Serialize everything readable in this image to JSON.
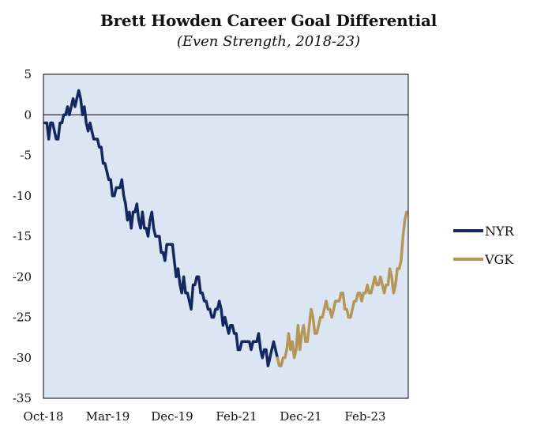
{
  "chart_data": {
    "type": "line",
    "title": "Brett Howden Career Goal Differential",
    "subtitle": "(Even Strength, 2018-23)",
    "xlabel": "",
    "ylabel": "",
    "ylim": [
      -35,
      5
    ],
    "yticks": [
      "5",
      "0",
      "-5",
      "-10",
      "-15",
      "-20",
      "-25",
      "-30",
      "-35"
    ],
    "xticks": [
      "Oct-18",
      "Mar-19",
      "Dec-19",
      "Feb-21",
      "Dec-21",
      "Feb-23"
    ],
    "grid": false,
    "legend_position": "right",
    "series": [
      {
        "name": "NYR",
        "color": "#14275e",
        "values": [
          -1,
          -1,
          -3,
          -1,
          -1,
          -2,
          -3,
          -3,
          -1,
          -1,
          0,
          0,
          1,
          0,
          1,
          2,
          1,
          2,
          3,
          2,
          0,
          1,
          -1,
          -2,
          -1,
          -2,
          -3,
          -3,
          -3,
          -4,
          -4,
          -6,
          -6,
          -7,
          -8,
          -8,
          -10,
          -10,
          -9,
          -9,
          -9,
          -8,
          -10,
          -11,
          -13,
          -12,
          -14,
          -12,
          -12,
          -11,
          -13,
          -14,
          -12,
          -14,
          -14,
          -15,
          -13,
          -12,
          -14,
          -15,
          -15,
          -15,
          -17,
          -17,
          -18,
          -16,
          -16,
          -16,
          -16,
          -18,
          -20,
          -19,
          -21,
          -22,
          -20,
          -22,
          -22,
          -23,
          -24,
          -21,
          -21,
          -20,
          -20,
          -22,
          -22,
          -23,
          -23,
          -24,
          -24,
          -25,
          -25,
          -24,
          -24,
          -23,
          -24,
          -26,
          -25,
          -26,
          -27,
          -26,
          -26,
          -27,
          -27,
          -29,
          -29,
          -28,
          -28,
          -28,
          -28,
          -28,
          -29,
          -28,
          -28,
          -28,
          -27,
          -29,
          -30,
          -29,
          -29,
          -31,
          -30,
          -29,
          -28,
          -29,
          -30
        ]
      },
      {
        "name": "VGK",
        "color": "#b49659",
        "values": [
          -30,
          -31,
          -31,
          -30,
          -30,
          -29,
          -27,
          -29,
          -28,
          -30,
          -29,
          -26,
          -29,
          -27,
          -26,
          -28,
          -28,
          -26,
          -24,
          -25,
          -27,
          -27,
          -26,
          -25,
          -25,
          -24,
          -23,
          -24,
          -24,
          -25,
          -24,
          -23,
          -23,
          -23,
          -22,
          -22,
          -24,
          -24,
          -25,
          -25,
          -24,
          -23,
          -23,
          -22,
          -22,
          -23,
          -22,
          -22,
          -21,
          -22,
          -22,
          -21,
          -20,
          -21,
          -21,
          -20,
          -21,
          -22,
          -21,
          -21,
          -19,
          -20,
          -22,
          -21,
          -19,
          -19,
          -18,
          -15,
          -13,
          -12
        ]
      }
    ]
  }
}
